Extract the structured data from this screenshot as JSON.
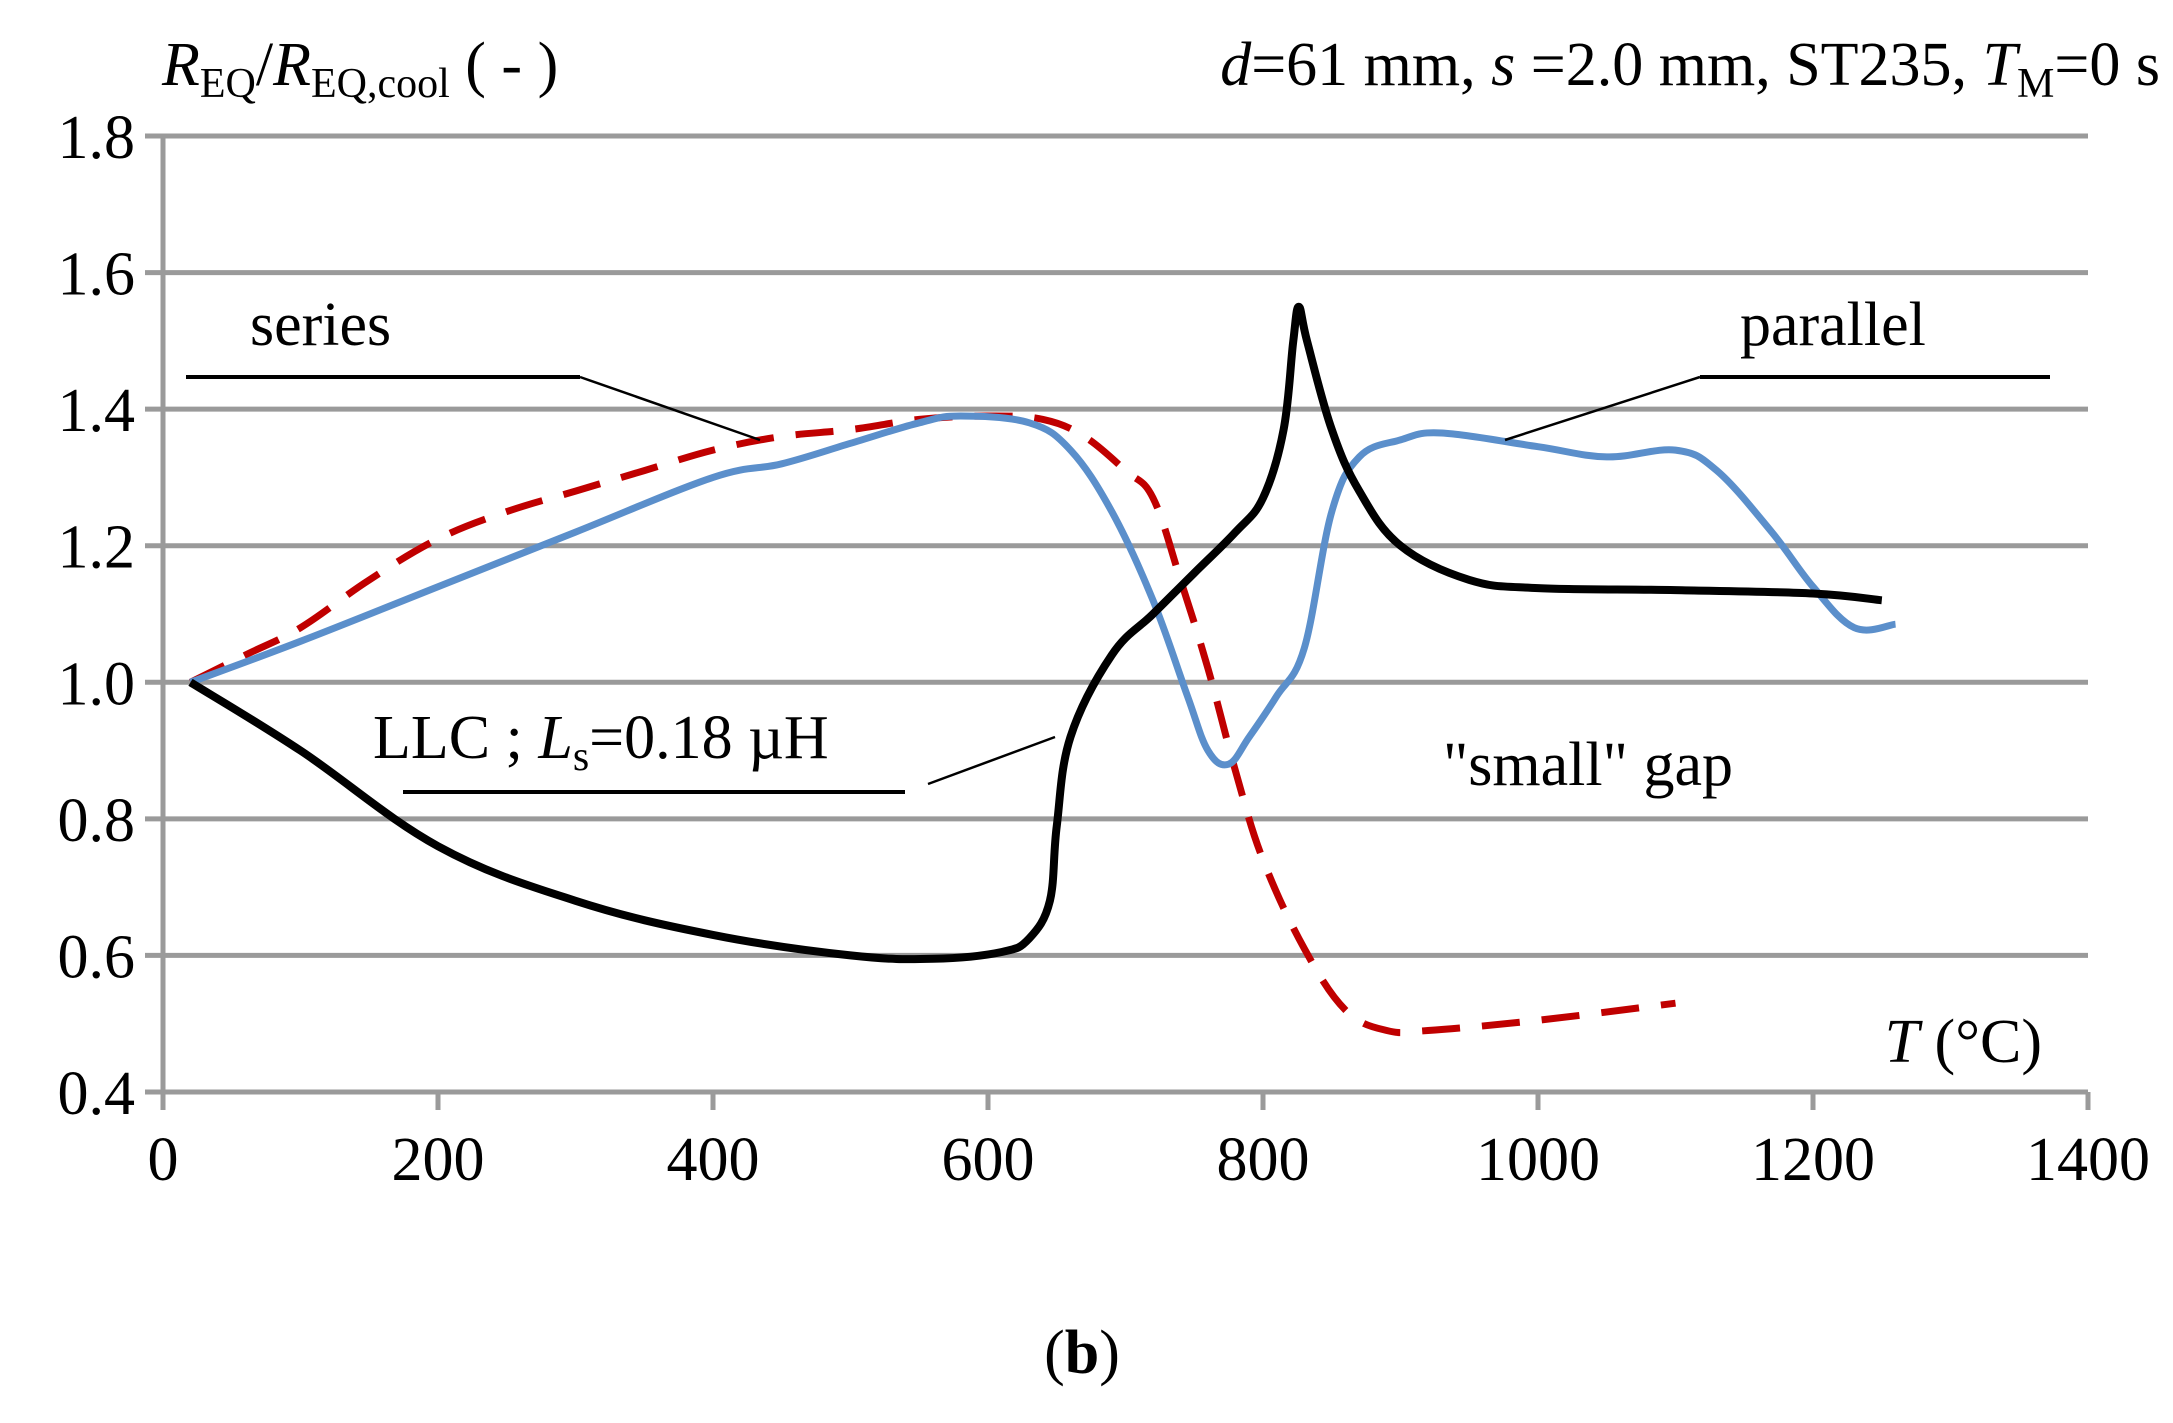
{
  "chart_data": {
    "type": "line",
    "title_parts": {
      "d_symbol": "d",
      "d_value": "=61 mm, ",
      "s_symbol": "s",
      "s_value": " =2.0 mm, ST235, ",
      "t_symbol": "T",
      "t_sub": "M",
      "t_value": "=0 s"
    },
    "ylabel_parts": {
      "r1": "R",
      "r1_sub": "EQ",
      "slash": "/",
      "r2": "R",
      "r2_sub": "EQ,cool",
      "unit": " ( - )"
    },
    "xlabel_parts": {
      "symbol": "T",
      "unit": " (°C)"
    },
    "xlim": [
      0,
      1400
    ],
    "ylim": [
      0.4,
      1.8
    ],
    "xticks": [
      "0",
      "200",
      "400",
      "600",
      "800",
      "1000",
      "1200",
      "1400"
    ],
    "yticks": [
      "0.4",
      "0.6",
      "0.8",
      "1.0",
      "1.2",
      "1.4",
      "1.6",
      "1.8"
    ],
    "grid": true,
    "series": [
      {
        "name": "series",
        "color": "#c00000",
        "dash": "dashed",
        "points": [
          [
            20,
            1.0
          ],
          [
            60,
            1.04
          ],
          [
            100,
            1.08
          ],
          [
            150,
            1.15
          ],
          [
            200,
            1.21
          ],
          [
            250,
            1.25
          ],
          [
            300,
            1.28
          ],
          [
            350,
            1.31
          ],
          [
            400,
            1.34
          ],
          [
            450,
            1.36
          ],
          [
            500,
            1.37
          ],
          [
            550,
            1.385
          ],
          [
            600,
            1.39
          ],
          [
            640,
            1.385
          ],
          [
            670,
            1.36
          ],
          [
            700,
            1.31
          ],
          [
            720,
            1.27
          ],
          [
            740,
            1.15
          ],
          [
            760,
            1.02
          ],
          [
            780,
            0.87
          ],
          [
            800,
            0.74
          ],
          [
            830,
            0.61
          ],
          [
            860,
            0.52
          ],
          [
            890,
            0.49
          ],
          [
            920,
            0.49
          ],
          [
            1000,
            0.505
          ],
          [
            1100,
            0.53
          ]
        ]
      },
      {
        "name": "parallel",
        "color": "#5b8fcb",
        "dash": "solid",
        "points": [
          [
            20,
            1.0
          ],
          [
            100,
            1.06
          ],
          [
            200,
            1.14
          ],
          [
            300,
            1.22
          ],
          [
            400,
            1.3
          ],
          [
            450,
            1.32
          ],
          [
            500,
            1.35
          ],
          [
            550,
            1.38
          ],
          [
            580,
            1.39
          ],
          [
            630,
            1.38
          ],
          [
            660,
            1.34
          ],
          [
            690,
            1.25
          ],
          [
            720,
            1.12
          ],
          [
            745,
            0.98
          ],
          [
            760,
            0.9
          ],
          [
            775,
            0.88
          ],
          [
            790,
            0.92
          ],
          [
            810,
            0.98
          ],
          [
            830,
            1.05
          ],
          [
            850,
            1.25
          ],
          [
            870,
            1.33
          ],
          [
            900,
            1.355
          ],
          [
            930,
            1.365
          ],
          [
            1000,
            1.345
          ],
          [
            1050,
            1.33
          ],
          [
            1100,
            1.34
          ],
          [
            1130,
            1.31
          ],
          [
            1170,
            1.22
          ],
          [
            1200,
            1.14
          ],
          [
            1230,
            1.08
          ],
          [
            1260,
            1.085
          ]
        ]
      },
      {
        "name": "LLC ; Ls=0.18 µH",
        "color": "#000000",
        "dash": "solid",
        "points": [
          [
            20,
            1.0
          ],
          [
            100,
            0.9
          ],
          [
            200,
            0.76
          ],
          [
            300,
            0.68
          ],
          [
            400,
            0.63
          ],
          [
            500,
            0.6
          ],
          [
            560,
            0.595
          ],
          [
            610,
            0.605
          ],
          [
            630,
            0.625
          ],
          [
            645,
            0.68
          ],
          [
            650,
            0.79
          ],
          [
            660,
            0.92
          ],
          [
            690,
            1.04
          ],
          [
            720,
            1.1
          ],
          [
            750,
            1.16
          ],
          [
            780,
            1.22
          ],
          [
            800,
            1.27
          ],
          [
            815,
            1.37
          ],
          [
            822,
            1.5
          ],
          [
            826,
            1.55
          ],
          [
            832,
            1.5
          ],
          [
            850,
            1.37
          ],
          [
            870,
            1.28
          ],
          [
            900,
            1.2
          ],
          [
            950,
            1.15
          ],
          [
            1000,
            1.138
          ],
          [
            1100,
            1.135
          ],
          [
            1200,
            1.13
          ],
          [
            1250,
            1.12
          ]
        ]
      }
    ],
    "annotations": {
      "series_label": "series",
      "parallel_label": "parallel",
      "llc_prefix": "LLC ; ",
      "llc_symbol": "L",
      "llc_sub": "s",
      "llc_value": "=0.18 µH",
      "gap_label": "\"small\" gap"
    },
    "panel_label": {
      "open": "(",
      "letter": "b",
      "close": ")"
    }
  }
}
